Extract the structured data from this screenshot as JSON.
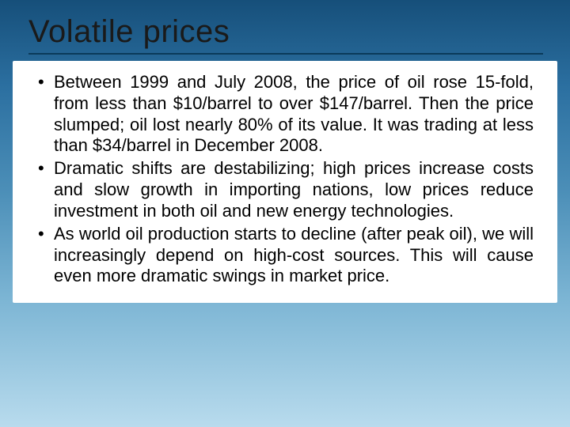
{
  "slide": {
    "title": "Volatile prices",
    "bullets": [
      "Between 1999 and July 2008, the price of oil rose 15-fold, from less than $10/barrel to over $147/barrel. Then the price slumped; oil lost nearly 80% of its value. It was trading at less than $34/barrel in December 2008.",
      "Dramatic shifts are destabilizing;  high prices increase costs and slow growth in importing nations, low prices reduce investment in both oil and new energy technologies.",
      "As world oil production starts to decline (after peak oil), we will increasingly depend on high-cost sources. This will cause even more dramatic swings in market price."
    ]
  },
  "style": {
    "background_gradient": [
      "#164f7a",
      "#2b6fa0",
      "#4c8fb8",
      "#7cb5d4",
      "#b8dbed"
    ],
    "content_bg": "#ffffff",
    "title_color": "#1a1a1a",
    "title_fontsize": 40,
    "body_fontsize": 22,
    "body_color": "#000000",
    "underline_color": "#0a3a5a",
    "font_family": "Arial"
  }
}
